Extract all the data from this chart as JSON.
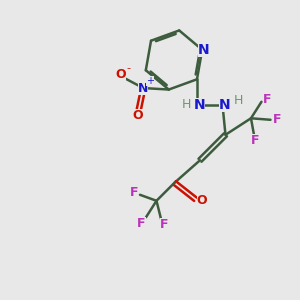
{
  "bg_color": "#e8e8e8",
  "bond_color": "#3d5c3d",
  "N_color": "#1a1acc",
  "O_color": "#cc1100",
  "F_color": "#bb33bb",
  "H_color": "#6a9a6a",
  "lw": 1.8,
  "figsize": [
    3.0,
    3.0
  ],
  "dpi": 100,
  "xlim": [
    0,
    10
  ],
  "ylim": [
    0,
    10
  ]
}
